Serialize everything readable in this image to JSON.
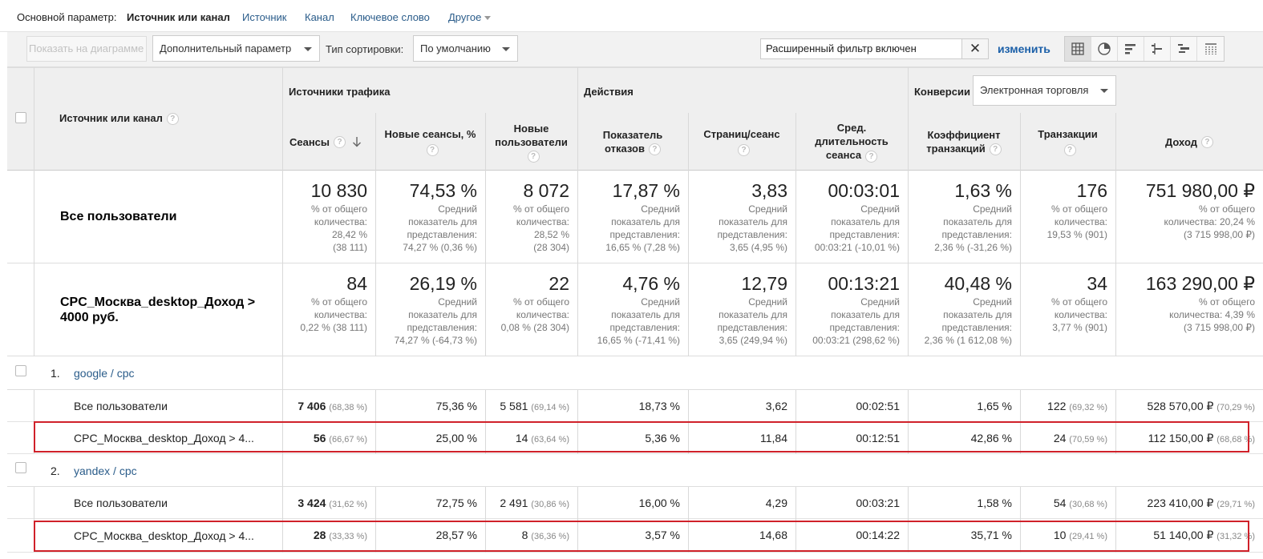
{
  "topbar": {
    "label": "Основной параметр:",
    "current": "Источник или канал",
    "links": [
      "Источник",
      "Канал",
      "Ключевое слово"
    ],
    "other": "Другое"
  },
  "toolbar": {
    "show_on_chart": "Показать на диаграмме",
    "secondary_dim": "Дополнительный параметр",
    "sort_label": "Тип сортировки:",
    "sort_value": "По умолчанию",
    "filter_text": "Расширенный фильтр включен",
    "filter_clear": "✕",
    "change": "изменить"
  },
  "table": {
    "dim_header": "Источник или канал",
    "groups": {
      "traffic": "Источники трафика",
      "actions": "Действия",
      "conversions": "Конверсии",
      "conversions_select": "Электронная торговля"
    },
    "columns": {
      "sessions": "Сеансы",
      "new_sessions_1": "Новые сеансы, %",
      "new_users_1": "Новые",
      "new_users_2": "пользователи",
      "bounce_1": "Показатель",
      "bounce_2": "отказов",
      "pages": "Страниц/сеанс",
      "duration_1": "Сред.",
      "duration_2": "длительность",
      "duration_3": "сеанса",
      "conv_1": "Коэффициент",
      "conv_2": "транзакций",
      "transactions": "Транзакции",
      "revenue": "Доход"
    },
    "segments": [
      {
        "name": "Все пользователи",
        "metrics": [
          {
            "value": "10 830",
            "sub": [
              "% от общего",
              "количества:",
              "28,42 %",
              "(38 111)"
            ]
          },
          {
            "value": "74,53 %",
            "sub": [
              "Средний",
              "показатель для",
              "представления:",
              "74,27 % (0,36 %)"
            ]
          },
          {
            "value": "8 072",
            "sub": [
              "% от общего",
              "количества:",
              "28,52 %",
              "(28 304)"
            ]
          },
          {
            "value": "17,87 %",
            "sub": [
              "Средний",
              "показатель для",
              "представления:",
              "16,65 % (7,28 %)"
            ]
          },
          {
            "value": "3,83",
            "sub": [
              "Средний",
              "показатель для",
              "представления:",
              "3,65 (4,95 %)"
            ]
          },
          {
            "value": "00:03:01",
            "sub": [
              "Средний",
              "показатель для",
              "представления:",
              "00:03:21 (-10,01 %)"
            ]
          },
          {
            "value": "1,63 %",
            "sub": [
              "Средний",
              "показатель для",
              "представления:",
              "2,36 % (-31,26 %)"
            ]
          },
          {
            "value": "176",
            "sub": [
              "% от общего",
              "количества:",
              "19,53 % (901)"
            ]
          },
          {
            "value": "751 980,00 ₽",
            "sub": [
              "% от общего",
              "количества: 20,24 %",
              "(3 715 998,00 ₽)"
            ]
          }
        ]
      },
      {
        "name_1": "CPC_Москва_desktop_Доход >",
        "name_2": "4000 руб.",
        "metrics": [
          {
            "value": "84",
            "sub": [
              "% от общего",
              "количества:",
              "0,22 % (38 111)"
            ]
          },
          {
            "value": "26,19 %",
            "sub": [
              "Средний",
              "показатель для",
              "представления:",
              "74,27 % (-64,73 %)"
            ]
          },
          {
            "value": "22",
            "sub": [
              "% от общего",
              "количества:",
              "0,08 % (28 304)"
            ]
          },
          {
            "value": "4,76 %",
            "sub": [
              "Средний",
              "показатель для",
              "представления:",
              "16,65 % (-71,41 %)"
            ]
          },
          {
            "value": "12,79",
            "sub": [
              "Средний",
              "показатель для",
              "представления:",
              "3,65 (249,94 %)"
            ]
          },
          {
            "value": "00:13:21",
            "sub": [
              "Средний",
              "показатель для",
              "представления:",
              "00:03:21 (298,62 %)"
            ]
          },
          {
            "value": "40,48 %",
            "sub": [
              "Средний",
              "показатель для",
              "представления:",
              "2,36 % (1 612,08 %)"
            ]
          },
          {
            "value": "34",
            "sub": [
              "% от общего",
              "количества:",
              "3,77 % (901)"
            ]
          },
          {
            "value": "163 290,00 ₽",
            "sub": [
              "% от общего",
              "количества: 4,39 %",
              "(3 715 998,00 ₽)"
            ]
          }
        ]
      }
    ],
    "rows": [
      {
        "num": "1.",
        "name": "google / cpc",
        "sub": [
          {
            "name": "Все пользователи",
            "c": [
              [
                "7 406",
                "(68,38 %)"
              ],
              [
                "75,36 %",
                ""
              ],
              [
                "5 581",
                "(69,14 %)"
              ],
              [
                "18,73 %",
                ""
              ],
              [
                "3,62",
                ""
              ],
              [
                "00:02:51",
                ""
              ],
              [
                "1,65 %",
                ""
              ],
              [
                "122",
                "(69,32 %)"
              ],
              [
                "528 570,00 ₽",
                "(70,29 %)"
              ]
            ]
          },
          {
            "name": "CPC_Москва_desktop_Доход > 4...",
            "c": [
              [
                "56",
                "(66,67 %)"
              ],
              [
                "25,00 %",
                ""
              ],
              [
                "14",
                "(63,64 %)"
              ],
              [
                "5,36 %",
                ""
              ],
              [
                "11,84",
                ""
              ],
              [
                "00:12:51",
                ""
              ],
              [
                "42,86 %",
                ""
              ],
              [
                "24",
                "(70,59 %)"
              ],
              [
                "112 150,00 ₽",
                "(68,68 %)"
              ]
            ]
          }
        ]
      },
      {
        "num": "2.",
        "name": "yandex / cpc",
        "sub": [
          {
            "name": "Все пользователи",
            "c": [
              [
                "3 424",
                "(31,62 %)"
              ],
              [
                "72,75 %",
                ""
              ],
              [
                "2 491",
                "(30,86 %)"
              ],
              [
                "16,00 %",
                ""
              ],
              [
                "4,29",
                ""
              ],
              [
                "00:03:21",
                ""
              ],
              [
                "1,58 %",
                ""
              ],
              [
                "54",
                "(30,68 %)"
              ],
              [
                "223 410,00 ₽",
                "(29,71 %)"
              ]
            ]
          },
          {
            "name": "CPC_Москва_desktop_Доход > 4...",
            "c": [
              [
                "28",
                "(33,33 %)"
              ],
              [
                "28,57 %",
                ""
              ],
              [
                "8",
                "(36,36 %)"
              ],
              [
                "3,57 %",
                ""
              ],
              [
                "14,68",
                ""
              ],
              [
                "00:14:22",
                ""
              ],
              [
                "35,71 %",
                ""
              ],
              [
                "10",
                "(29,41 %)"
              ],
              [
                "51 140,00 ₽",
                "(31,32 %)"
              ]
            ]
          }
        ]
      }
    ]
  },
  "colors": {
    "link": "#2a5c8a",
    "highlight": "#d0212a",
    "header_bg": "#efefef"
  }
}
